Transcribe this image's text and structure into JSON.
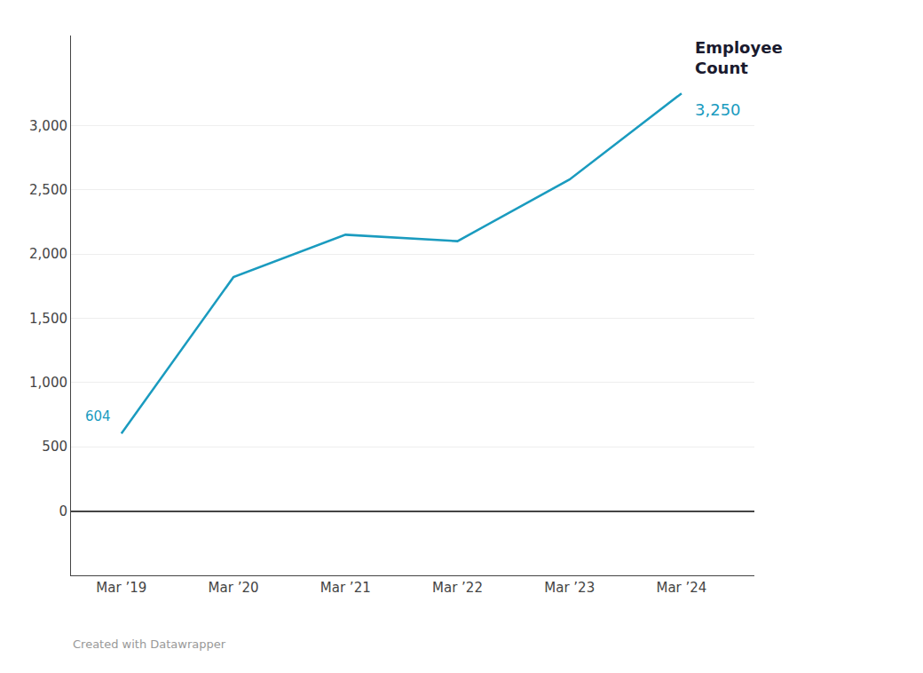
{
  "chart_data": {
    "type": "line",
    "x": [
      2019,
      2020,
      2021,
      2022,
      2023,
      2024
    ],
    "values": [
      604,
      1820,
      2150,
      2100,
      2580,
      3250
    ],
    "color": "#1a9bbf",
    "xlim": [
      2018.55,
      2024.65
    ],
    "xticks": [
      {
        "value": 2019,
        "label": "Mar ’19"
      },
      {
        "value": 2020,
        "label": "Mar ’20"
      },
      {
        "value": 2021,
        "label": "Mar ’21"
      },
      {
        "value": 2022,
        "label": "Mar ’22"
      },
      {
        "value": 2023,
        "label": "Mar ’23"
      },
      {
        "value": 2024,
        "label": "Mar ’24"
      }
    ],
    "ylim": [
      -500,
      3700
    ],
    "yticks": [
      0,
      500,
      {
        "value": 1000,
        "label": "1,000"
      },
      {
        "value": 1500,
        "label": "1,500"
      },
      {
        "value": 2000,
        "label": "2,000"
      },
      {
        "value": 2500,
        "label": "2,500"
      },
      {
        "value": 3000,
        "label": "3,000"
      }
    ],
    "grid": "y",
    "annotations": [
      {
        "text": "604",
        "x": 2019,
        "y": 604,
        "color": "#1a9bbf"
      },
      {
        "text": "Employee\nCount",
        "x": 2024,
        "y": 3250,
        "color": "#1a1a2e"
      },
      {
        "text": "3,250",
        "x": 2024,
        "y": 3250,
        "color": "#1a9bbf"
      },
      {
        "text": "Created with Datawrapper"
      }
    ]
  }
}
